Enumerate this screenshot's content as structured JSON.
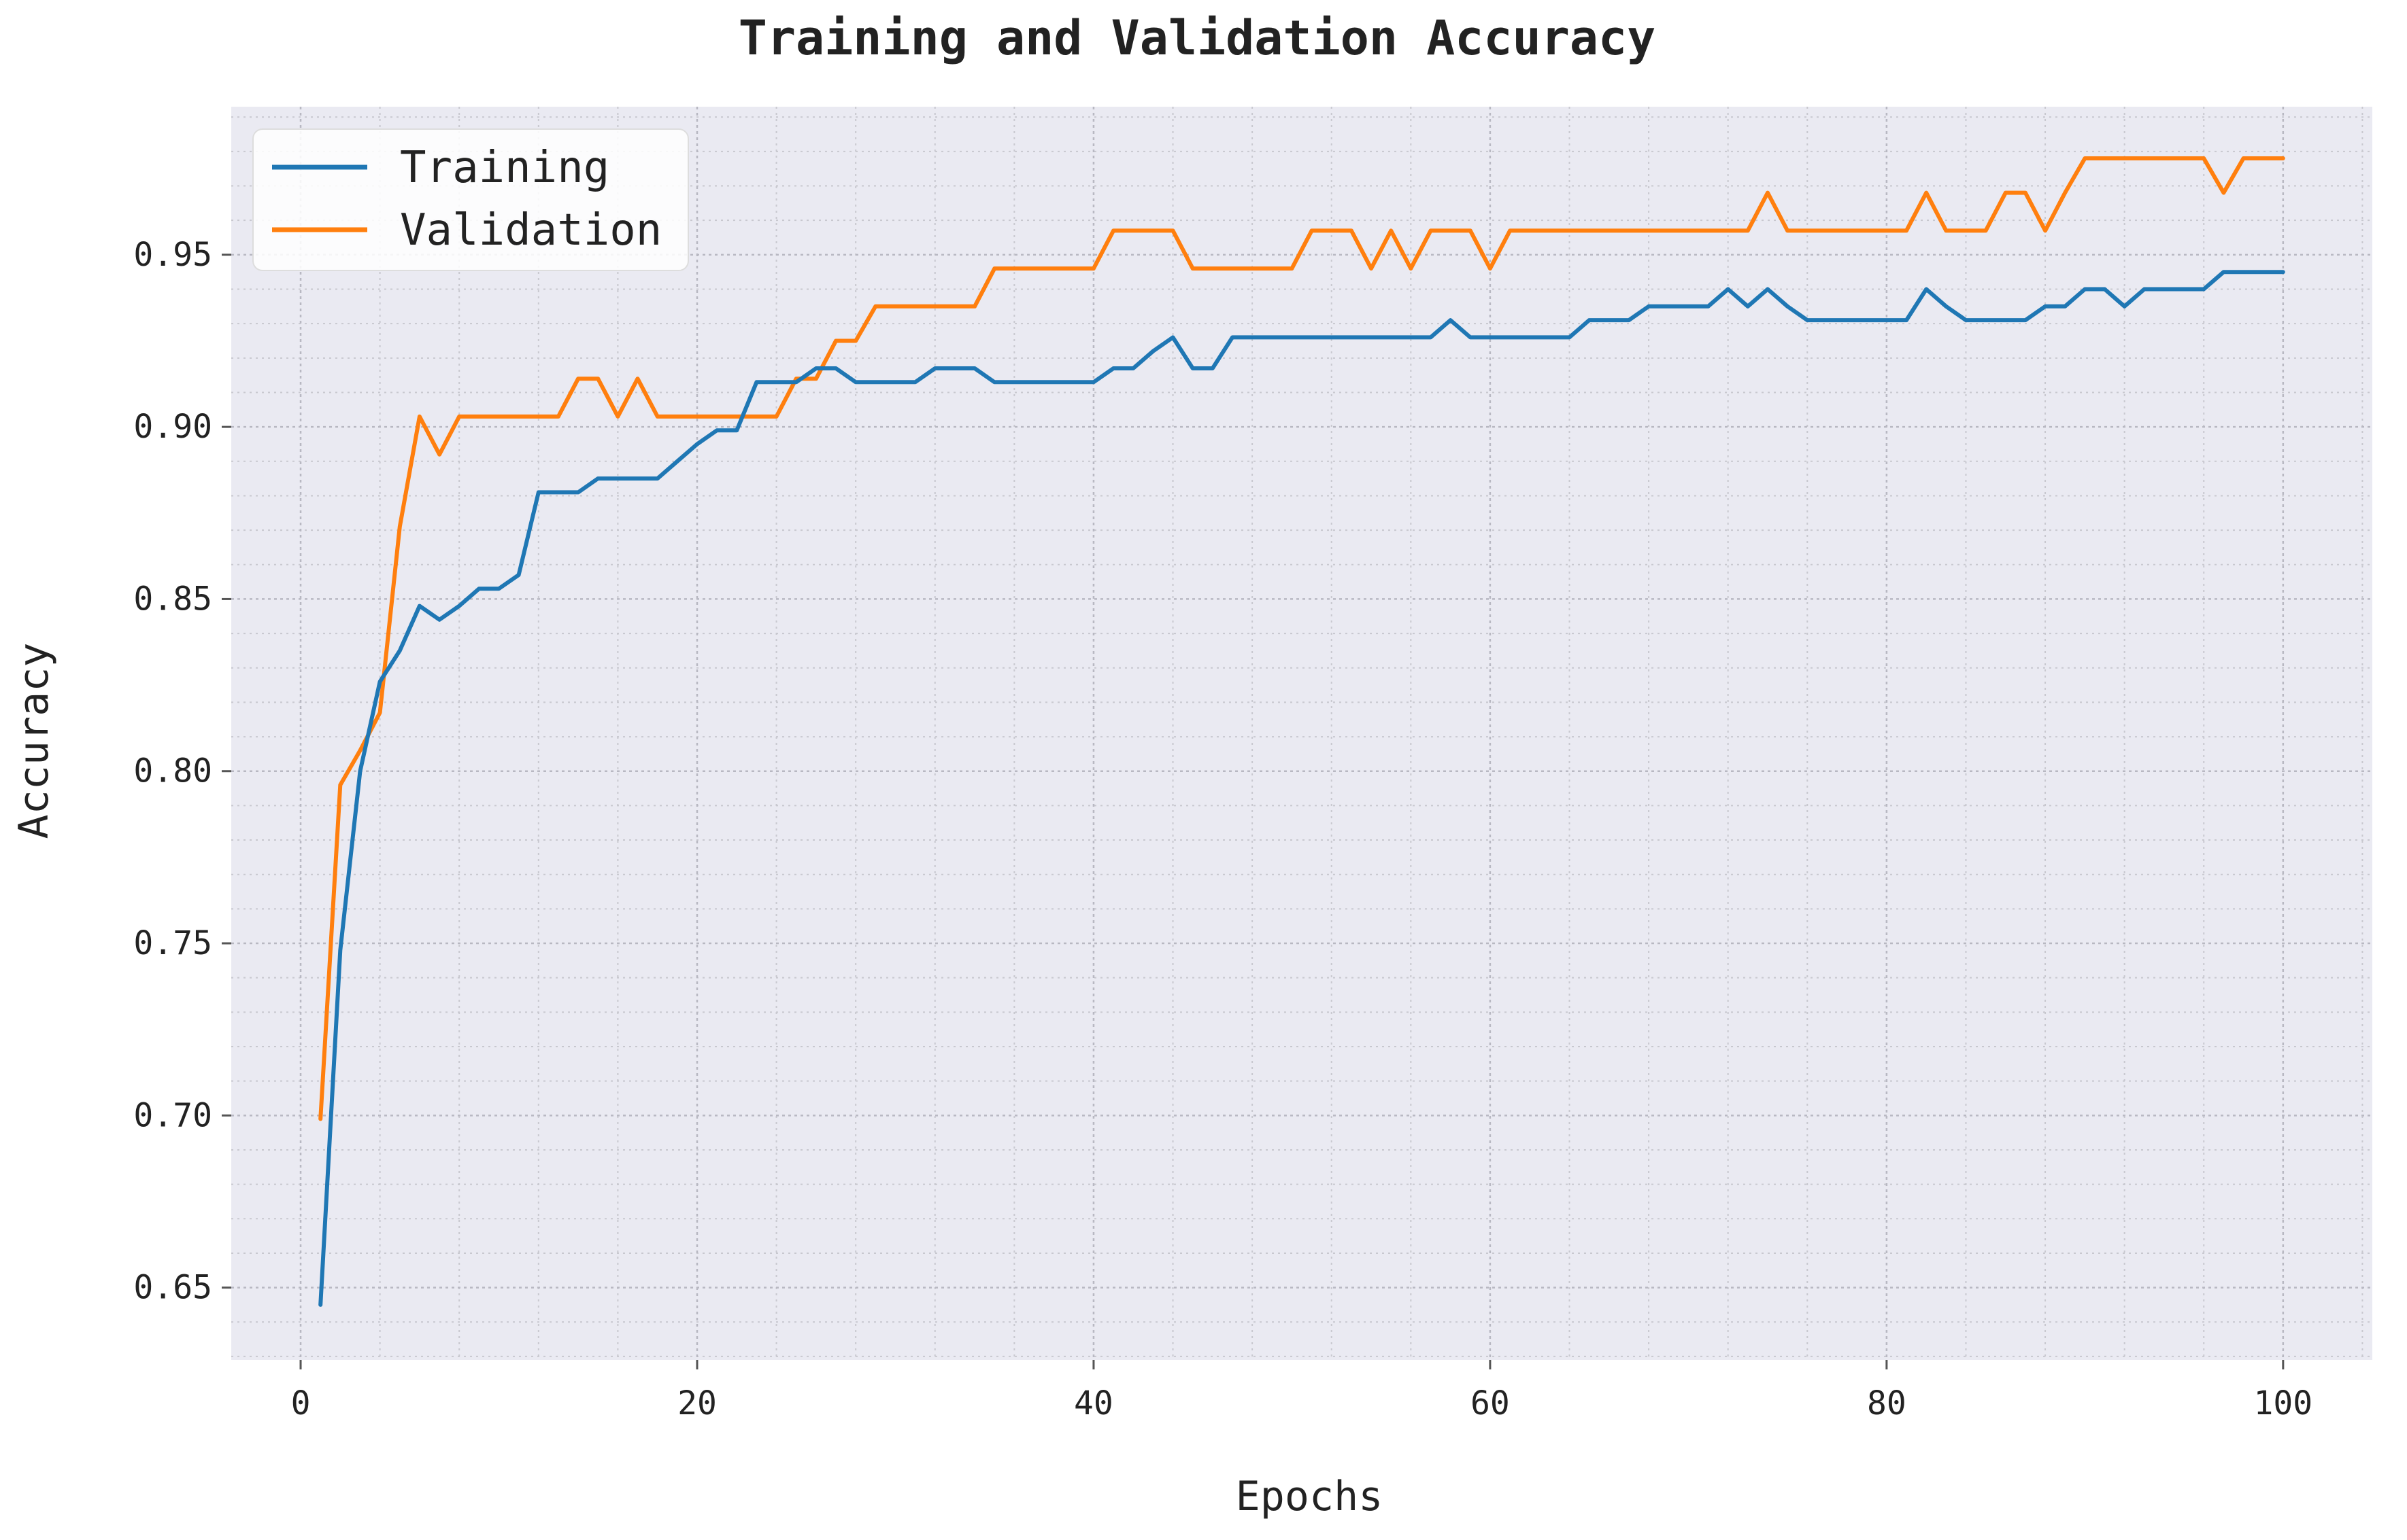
{
  "chart_data": {
    "type": "line",
    "title": "Training and Validation Accuracy",
    "xlabel": "Epochs",
    "ylabel": "Accuracy",
    "xlim": [
      -3.5,
      104.5
    ],
    "ylim": [
      0.629,
      0.993
    ],
    "xticks": [
      0,
      20,
      40,
      60,
      80,
      100
    ],
    "xtick_labels": [
      "0",
      "20",
      "40",
      "60",
      "80",
      "100"
    ],
    "yticks": [
      0.65,
      0.7,
      0.75,
      0.8,
      0.85,
      0.9,
      0.95
    ],
    "ytick_labels": [
      "0.65",
      "0.70",
      "0.75",
      "0.80",
      "0.85",
      "0.90",
      "0.95"
    ],
    "grid": true,
    "minor_grid": true,
    "legend_position": "top-left",
    "background_color": "#eaeaf2",
    "x": [
      1,
      2,
      3,
      4,
      5,
      6,
      7,
      8,
      9,
      10,
      11,
      12,
      13,
      14,
      15,
      16,
      17,
      18,
      19,
      20,
      21,
      22,
      23,
      24,
      25,
      26,
      27,
      28,
      29,
      30,
      31,
      32,
      33,
      34,
      35,
      36,
      37,
      38,
      39,
      40,
      41,
      42,
      43,
      44,
      45,
      46,
      47,
      48,
      49,
      50,
      51,
      52,
      53,
      54,
      55,
      56,
      57,
      58,
      59,
      60,
      61,
      62,
      63,
      64,
      65,
      66,
      67,
      68,
      69,
      70,
      71,
      72,
      73,
      74,
      75,
      76,
      77,
      78,
      79,
      80,
      81,
      82,
      83,
      84,
      85,
      86,
      87,
      88,
      89,
      90,
      91,
      92,
      93,
      94,
      95,
      96,
      97,
      98,
      99,
      100
    ],
    "series": [
      {
        "name": "Training",
        "color": "#1f77b4",
        "values": [
          0.645,
          0.748,
          0.8,
          0.826,
          0.835,
          0.848,
          0.844,
          0.848,
          0.853,
          0.853,
          0.857,
          0.881,
          0.881,
          0.881,
          0.885,
          0.885,
          0.885,
          0.885,
          0.89,
          0.895,
          0.899,
          0.899,
          0.913,
          0.913,
          0.913,
          0.917,
          0.917,
          0.913,
          0.913,
          0.913,
          0.913,
          0.917,
          0.917,
          0.917,
          0.913,
          0.913,
          0.913,
          0.913,
          0.913,
          0.913,
          0.917,
          0.917,
          0.922,
          0.926,
          0.917,
          0.917,
          0.926,
          0.926,
          0.926,
          0.926,
          0.926,
          0.926,
          0.926,
          0.926,
          0.926,
          0.926,
          0.926,
          0.931,
          0.926,
          0.926,
          0.926,
          0.926,
          0.926,
          0.926,
          0.931,
          0.931,
          0.931,
          0.935,
          0.935,
          0.935,
          0.935,
          0.94,
          0.935,
          0.94,
          0.935,
          0.931,
          0.931,
          0.931,
          0.931,
          0.931,
          0.931,
          0.94,
          0.935,
          0.931,
          0.931,
          0.931,
          0.931,
          0.935,
          0.935,
          0.94,
          0.94,
          0.935,
          0.94,
          0.94,
          0.94,
          0.94,
          0.945,
          0.945,
          0.945,
          0.945
        ]
      },
      {
        "name": "Validation",
        "color": "#ff7f0e",
        "values": [
          0.699,
          0.796,
          0.806,
          0.817,
          0.871,
          0.903,
          0.892,
          0.903,
          0.903,
          0.903,
          0.903,
          0.903,
          0.903,
          0.914,
          0.914,
          0.903,
          0.914,
          0.903,
          0.903,
          0.903,
          0.903,
          0.903,
          0.903,
          0.903,
          0.914,
          0.914,
          0.925,
          0.925,
          0.935,
          0.935,
          0.935,
          0.935,
          0.935,
          0.935,
          0.946,
          0.946,
          0.946,
          0.946,
          0.946,
          0.946,
          0.957,
          0.957,
          0.957,
          0.957,
          0.946,
          0.946,
          0.946,
          0.946,
          0.946,
          0.946,
          0.957,
          0.957,
          0.957,
          0.946,
          0.957,
          0.946,
          0.957,
          0.957,
          0.957,
          0.946,
          0.957,
          0.957,
          0.957,
          0.957,
          0.957,
          0.957,
          0.957,
          0.957,
          0.957,
          0.957,
          0.957,
          0.957,
          0.957,
          0.968,
          0.957,
          0.957,
          0.957,
          0.957,
          0.957,
          0.957,
          0.957,
          0.968,
          0.957,
          0.957,
          0.957,
          0.968,
          0.968,
          0.957,
          0.968,
          0.978,
          0.978,
          0.978,
          0.978,
          0.978,
          0.978,
          0.978,
          0.968,
          0.978,
          0.978,
          0.978
        ]
      }
    ]
  }
}
